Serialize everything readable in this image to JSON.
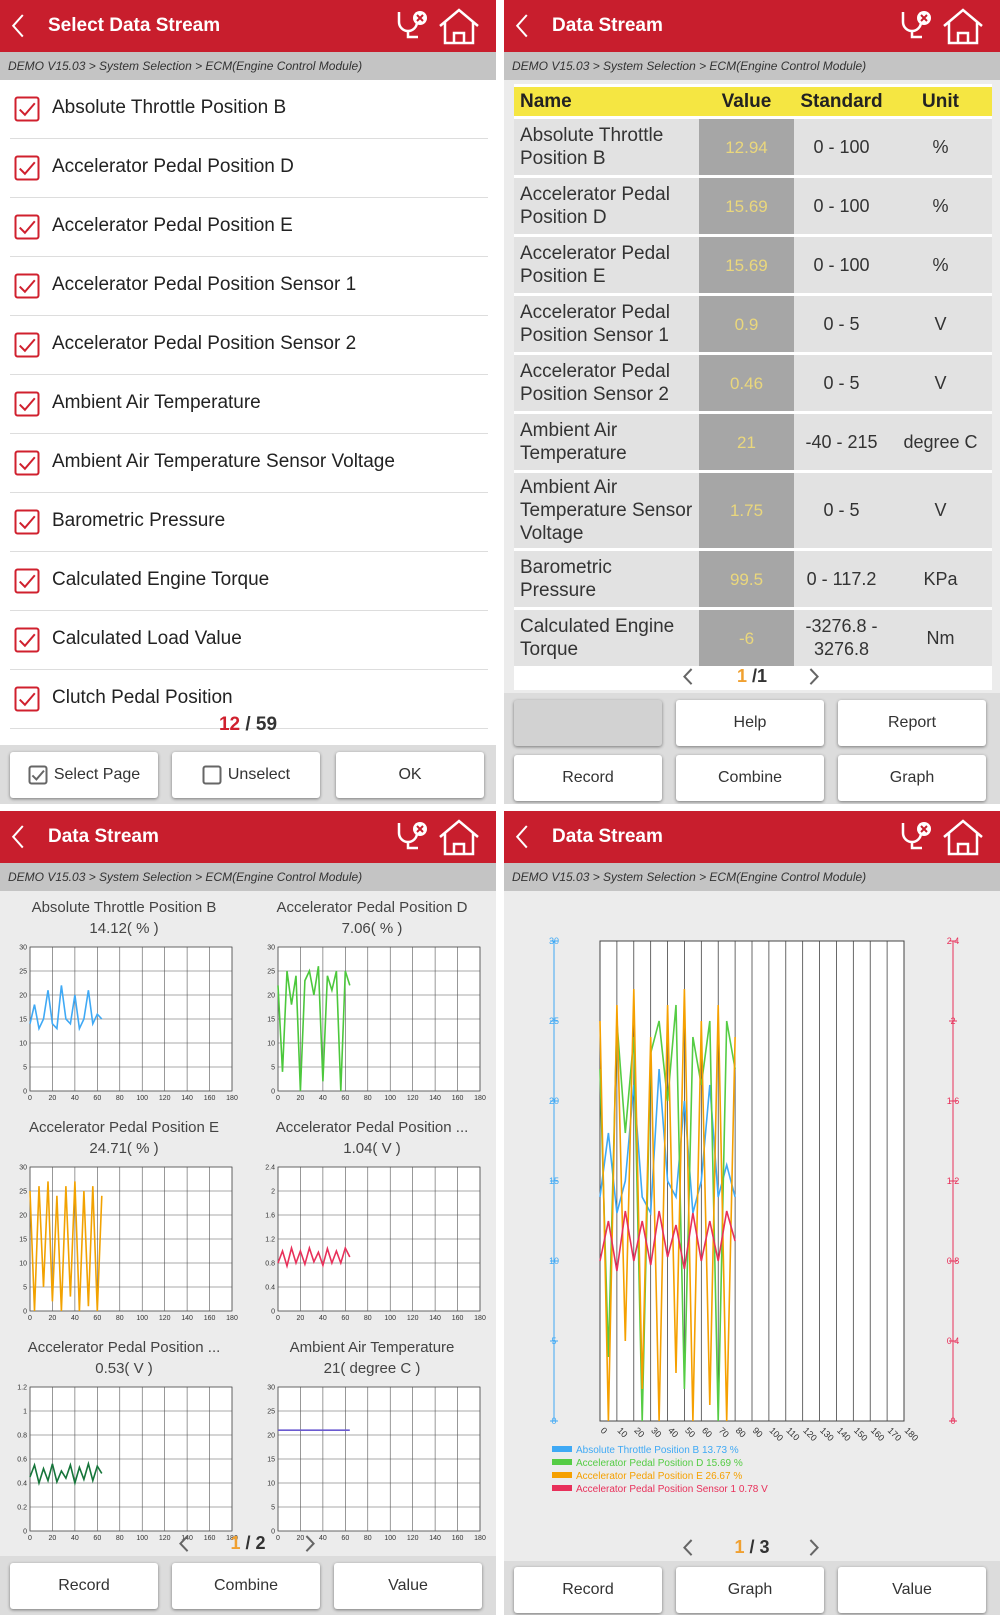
{
  "select_screen": {
    "title": "Select Data Stream",
    "breadcrumb": "DEMO V15.03 > System Selection > ECM(Engine Control Module)",
    "items": [
      "Absolute Throttle Position B",
      "Accelerator Pedal Position D",
      "Accelerator Pedal Position E",
      "Accelerator Pedal Position Sensor 1",
      "Accelerator Pedal Position Sensor 2",
      "Ambient Air Temperature",
      "Ambient Air Temperature Sensor Voltage",
      "Barometric Pressure",
      "Calculated Engine Torque",
      "Calculated Load Value",
      "Clutch Pedal Position"
    ],
    "page": {
      "current": "12",
      "rest": "/ 59"
    },
    "buttons": [
      "Select Page",
      "Unselect",
      "OK"
    ]
  },
  "table_screen": {
    "title": "Data Stream",
    "breadcrumb": "DEMO V15.03 > System Selection > ECM(Engine Control Module)",
    "columns": [
      "Name",
      "Value",
      "Standard",
      "Unit"
    ],
    "rows": [
      [
        "Absolute Throttle Position B",
        "12.94",
        "0 - 100",
        "%"
      ],
      [
        "Accelerator Pedal Position D",
        "15.69",
        "0 - 100",
        "%"
      ],
      [
        "Accelerator Pedal Position E",
        "15.69",
        "0 - 100",
        "%"
      ],
      [
        "Accelerator Pedal Position Sensor 1",
        "0.9",
        "0 - 5",
        "V"
      ],
      [
        "Accelerator Pedal Position Sensor 2",
        "0.46",
        "0 - 5",
        "V"
      ],
      [
        "Ambient Air Temperature",
        "21",
        "-40 - 215",
        "degree C"
      ],
      [
        "Ambient Air Temperature Sensor Voltage",
        "1.75",
        "0 - 5",
        "V"
      ],
      [
        "Barometric Pressure",
        "99.5",
        "0 - 117.2",
        "KPa"
      ],
      [
        "Calculated Engine Torque",
        "-6",
        "-3276.8 - 3276.8",
        "Nm"
      ]
    ],
    "page": {
      "current": "1",
      "rest": "/1"
    },
    "buttons": [
      "Help",
      "Report",
      "Record",
      "Combine",
      "Graph"
    ]
  },
  "graph_screen": {
    "title": "Data Stream",
    "breadcrumb": "DEMO V15.03 > System Selection > ECM(Engine Control Module)",
    "charts": [
      {
        "type": "line",
        "name": "Absolute Throttle Position B",
        "reading": "14.12( % )",
        "color": "#3fa9f5",
        "x": [
          0,
          4,
          8,
          12,
          16,
          20,
          24,
          28,
          32,
          36,
          40,
          44,
          48,
          52,
          56,
          60,
          64
        ],
        "values": [
          14,
          18,
          13,
          15,
          21,
          14,
          13,
          22,
          15,
          14,
          20,
          13,
          15,
          21,
          14,
          16,
          15
        ],
        "xlim": [
          0,
          180
        ],
        "ylim": [
          0,
          30
        ],
        "xticks": [
          0,
          20,
          40,
          60,
          80,
          100,
          120,
          140,
          160,
          180
        ],
        "yticks": [
          0,
          5,
          10,
          15,
          20,
          25,
          30
        ],
        "grid": true
      },
      {
        "type": "line",
        "name": "Accelerator Pedal Position D",
        "reading": "7.06( % )",
        "color": "#4cc83c",
        "x": [
          0,
          4,
          8,
          12,
          16,
          20,
          24,
          28,
          32,
          36,
          40,
          44,
          48,
          52,
          56,
          60,
          64
        ],
        "values": [
          22,
          4,
          25,
          18,
          24,
          0,
          23,
          25,
          20,
          26,
          2,
          24,
          21,
          25,
          0,
          25,
          22
        ],
        "xlim": [
          0,
          180
        ],
        "ylim": [
          0,
          30
        ],
        "xticks": [
          0,
          20,
          40,
          60,
          80,
          100,
          120,
          140,
          160,
          180
        ],
        "yticks": [
          0,
          5,
          10,
          15,
          20,
          25,
          30
        ],
        "grid": true
      },
      {
        "type": "line",
        "name": "Accelerator Pedal Position E",
        "reading": "24.71( % )",
        "color": "#f2a200",
        "x": [
          0,
          4,
          8,
          12,
          16,
          20,
          24,
          28,
          32,
          36,
          40,
          44,
          48,
          52,
          56,
          60,
          64
        ],
        "values": [
          25,
          0,
          26,
          5,
          27,
          2,
          24,
          0,
          26,
          3,
          27,
          0,
          25,
          1,
          26,
          0,
          24
        ],
        "xlim": [
          0,
          180
        ],
        "ylim": [
          0,
          30
        ],
        "xticks": [
          0,
          20,
          40,
          60,
          80,
          100,
          120,
          140,
          160,
          180
        ],
        "yticks": [
          0,
          5,
          10,
          15,
          20,
          25,
          30
        ],
        "grid": true
      },
      {
        "type": "line",
        "name": "Accelerator Pedal Position ...",
        "reading": "1.04( V )",
        "color": "#e8305a",
        "x": [
          0,
          4,
          8,
          12,
          16,
          20,
          24,
          28,
          32,
          36,
          40,
          44,
          48,
          52,
          56,
          60,
          64
        ],
        "values": [
          0.8,
          1.0,
          0.75,
          1.05,
          0.8,
          1.0,
          0.78,
          1.05,
          0.82,
          0.98,
          0.76,
          1.04,
          0.8,
          1.0,
          0.8,
          1.05,
          0.9
        ],
        "xlim": [
          0,
          180
        ],
        "ylim": [
          0,
          2.4
        ],
        "xticks": [
          0,
          20,
          40,
          60,
          80,
          100,
          120,
          140,
          160,
          180
        ],
        "yticks": [
          0,
          0.4,
          0.8,
          1.2,
          1.6,
          2,
          2.4
        ],
        "grid": true
      },
      {
        "type": "line",
        "name": "Accelerator Pedal Position ...",
        "reading": "0.53( V )",
        "color": "#16753a",
        "x": [
          0,
          4,
          8,
          12,
          16,
          20,
          24,
          28,
          32,
          36,
          40,
          44,
          48,
          52,
          56,
          60,
          64
        ],
        "values": [
          0.45,
          0.55,
          0.4,
          0.52,
          0.42,
          0.56,
          0.41,
          0.5,
          0.44,
          0.55,
          0.4,
          0.53,
          0.43,
          0.56,
          0.42,
          0.54,
          0.48
        ],
        "xlim": [
          0,
          180
        ],
        "ylim": [
          0,
          1.2
        ],
        "xticks": [
          0,
          20,
          40,
          60,
          80,
          100,
          120,
          140,
          160,
          180
        ],
        "yticks": [
          0,
          0.2,
          0.4,
          0.6,
          0.8,
          1,
          1.2
        ],
        "grid": true
      },
      {
        "type": "line",
        "name": "Ambient Air Temperature",
        "reading": "21( degree C )",
        "color": "#6a5ad0",
        "x": [
          0,
          4,
          8,
          12,
          16,
          20,
          24,
          28,
          32,
          36,
          40,
          44,
          48,
          52,
          56,
          60,
          64
        ],
        "values": [
          21,
          21,
          21,
          21,
          21,
          21,
          21,
          21,
          21,
          21,
          21,
          21,
          21,
          21,
          21,
          21,
          21
        ],
        "xlim": [
          0,
          180
        ],
        "ylim": [
          0,
          30
        ],
        "xticks": [
          0,
          20,
          40,
          60,
          80,
          100,
          120,
          140,
          160,
          180
        ],
        "yticks": [
          0,
          5,
          10,
          15,
          20,
          25,
          30
        ],
        "grid": true
      }
    ],
    "page": {
      "current": "1",
      "rest": "/ 2"
    },
    "buttons": [
      "Record",
      "Combine",
      "Value"
    ]
  },
  "combined_screen": {
    "title": "Data Stream",
    "breadcrumb": "DEMO V15.03 > System Selection > ECM(Engine Control Module)",
    "chart_data": {
      "type": "line",
      "x": [
        0,
        5,
        10,
        15,
        20,
        25,
        30,
        35,
        40,
        45,
        50,
        55,
        60,
        65,
        70,
        75,
        80
      ],
      "series": [
        {
          "name": "Absolute Throttle Position B 13.73 %",
          "color": "#3fa9f5",
          "values": [
            14,
            18,
            13,
            15,
            21,
            14,
            13,
            22,
            15,
            14,
            20,
            13,
            15,
            21,
            14,
            16,
            14
          ]
        },
        {
          "name": "Accelerator Pedal Position D 15.69 %",
          "color": "#55cc44",
          "values": [
            22,
            4,
            25,
            18,
            24,
            0,
            23,
            25,
            20,
            26,
            2,
            24,
            21,
            25,
            0,
            25,
            22
          ]
        },
        {
          "name": "Accelerator Pedal Position E 26.67 %",
          "color": "#f5a000",
          "values": [
            25,
            0,
            26,
            5,
            27,
            2,
            24,
            0,
            26,
            3,
            27,
            0,
            25,
            1,
            26,
            0,
            24
          ]
        },
        {
          "name": "Accelerator Pedal Position Sensor 1 0.78 V",
          "color": "#e8305a",
          "axis": "y2",
          "values": [
            0.8,
            1.0,
            0.75,
            1.05,
            0.8,
            1.0,
            0.78,
            1.05,
            0.82,
            0.98,
            0.76,
            1.04,
            0.8,
            1.0,
            0.8,
            1.05,
            0.9
          ]
        }
      ],
      "xlim": [
        0,
        180
      ],
      "xticks": [
        0,
        10,
        20,
        30,
        40,
        50,
        60,
        70,
        80,
        90,
        100,
        110,
        120,
        130,
        140,
        150,
        160,
        170,
        180
      ],
      "ylim": [
        0,
        30
      ],
      "yticks": [
        0,
        5,
        10,
        15,
        20,
        25,
        30
      ],
      "y2lim": [
        0,
        2.4
      ],
      "y2ticks": [
        0,
        0.4,
        0.8,
        1.2,
        1.6,
        2,
        2.4
      ],
      "grid": true
    },
    "page": {
      "current": "1",
      "rest": "/ 3"
    },
    "buttons": [
      "Record",
      "Graph",
      "Value"
    ]
  }
}
